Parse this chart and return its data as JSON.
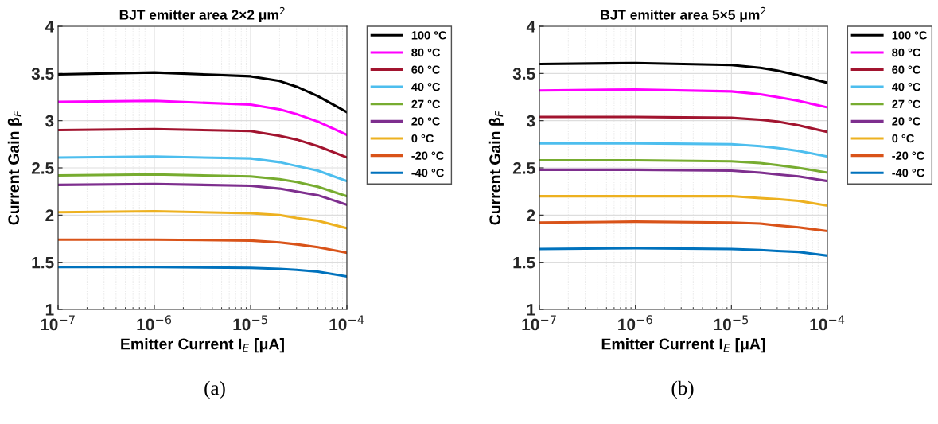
{
  "chart_data": [
    {
      "type": "line",
      "title": "BJT emitter area 2×2 μm$^{2}$",
      "xlabel": "Emitter Current I$_{E}$ [μA]",
      "ylabel": "Current Gain β$_{F}$",
      "log": "x",
      "grid": true,
      "legend": "right",
      "line_style": "solid",
      "marker": "none",
      "x": [
        1e-07,
        1e-06,
        1e-05,
        2e-05,
        3e-05,
        5e-05,
        0.0001
      ],
      "xlim": [
        1e-07,
        0.0001
      ],
      "xticks": [
        {
          "value": 1e-07,
          "label": "10$^{−7}$"
        },
        {
          "value": 1e-06,
          "label": "10$^{−6}$"
        },
        {
          "value": 1e-05,
          "label": "10$^{−5}$"
        },
        {
          "value": 0.0001,
          "label": "10$^{−4}$"
        }
      ],
      "ylim": [
        1,
        4
      ],
      "yticks": [
        1,
        1.5,
        2,
        2.5,
        3,
        3.5,
        4
      ],
      "series": [
        {
          "name": "100 °C",
          "color": "#000000",
          "values": [
            3.49,
            3.51,
            3.47,
            3.42,
            3.36,
            3.26,
            3.09
          ]
        },
        {
          "name": "80 °C",
          "color": "#ff00ff",
          "values": [
            3.2,
            3.21,
            3.17,
            3.12,
            3.07,
            2.99,
            2.85
          ]
        },
        {
          "name": "60 °C",
          "color": "#a2142f",
          "values": [
            2.9,
            2.91,
            2.89,
            2.84,
            2.8,
            2.73,
            2.61
          ]
        },
        {
          "name": "40 °C",
          "color": "#4dbeee",
          "values": [
            2.61,
            2.62,
            2.6,
            2.56,
            2.52,
            2.47,
            2.36
          ]
        },
        {
          "name": "27 °C",
          "color": "#77ac30",
          "values": [
            2.42,
            2.43,
            2.41,
            2.38,
            2.35,
            2.3,
            2.2
          ]
        },
        {
          "name": "20 °C",
          "color": "#7e2f8e",
          "values": [
            2.32,
            2.33,
            2.31,
            2.28,
            2.25,
            2.21,
            2.11
          ]
        },
        {
          "name": "0 °C",
          "color": "#edb120",
          "values": [
            2.03,
            2.04,
            2.02,
            2.0,
            1.97,
            1.94,
            1.86
          ]
        },
        {
          "name": "-20 °C",
          "color": "#d95319",
          "values": [
            1.74,
            1.74,
            1.73,
            1.71,
            1.69,
            1.66,
            1.6
          ]
        },
        {
          "name": "-40 °C",
          "color": "#0072bd",
          "values": [
            1.45,
            1.45,
            1.44,
            1.43,
            1.42,
            1.4,
            1.35
          ]
        }
      ],
      "annotations": [
        "(a)"
      ]
    },
    {
      "type": "line",
      "title": "BJT emitter area 5×5 μm$^{2}$",
      "xlabel": "Emitter Current I$_{E}$ [μA]",
      "ylabel": "Current Gain β$_{F}$",
      "log": "x",
      "grid": true,
      "legend": "right",
      "line_style": "solid",
      "marker": "none",
      "x": [
        1e-07,
        1e-06,
        1e-05,
        2e-05,
        3e-05,
        5e-05,
        0.0001
      ],
      "xlim": [
        1e-07,
        0.0001
      ],
      "xticks": [
        {
          "value": 1e-07,
          "label": "10$^{−7}$"
        },
        {
          "value": 1e-06,
          "label": "10$^{−6}$"
        },
        {
          "value": 1e-05,
          "label": "10$^{−5}$"
        },
        {
          "value": 0.0001,
          "label": "10$^{−4}$"
        }
      ],
      "ylim": [
        1,
        4
      ],
      "yticks": [
        1,
        1.5,
        2,
        2.5,
        3,
        3.5,
        4
      ],
      "series": [
        {
          "name": "100 °C",
          "color": "#000000",
          "values": [
            3.6,
            3.61,
            3.59,
            3.56,
            3.53,
            3.48,
            3.4
          ]
        },
        {
          "name": "80 °C",
          "color": "#ff00ff",
          "values": [
            3.32,
            3.33,
            3.31,
            3.28,
            3.25,
            3.21,
            3.14
          ]
        },
        {
          "name": "60 °C",
          "color": "#a2142f",
          "values": [
            3.04,
            3.04,
            3.03,
            3.01,
            2.99,
            2.95,
            2.88
          ]
        },
        {
          "name": "40 °C",
          "color": "#4dbeee",
          "values": [
            2.76,
            2.76,
            2.75,
            2.73,
            2.71,
            2.68,
            2.62
          ]
        },
        {
          "name": "27 °C",
          "color": "#77ac30",
          "values": [
            2.58,
            2.58,
            2.57,
            2.55,
            2.53,
            2.5,
            2.45
          ]
        },
        {
          "name": "20 °C",
          "color": "#7e2f8e",
          "values": [
            2.48,
            2.48,
            2.47,
            2.45,
            2.43,
            2.41,
            2.36
          ]
        },
        {
          "name": "0 °C",
          "color": "#edb120",
          "values": [
            2.2,
            2.2,
            2.2,
            2.18,
            2.17,
            2.15,
            2.1
          ]
        },
        {
          "name": "-20 °C",
          "color": "#d95319",
          "values": [
            1.92,
            1.93,
            1.92,
            1.91,
            1.89,
            1.87,
            1.83
          ]
        },
        {
          "name": "-40 °C",
          "color": "#0072bd",
          "values": [
            1.64,
            1.65,
            1.64,
            1.63,
            1.62,
            1.61,
            1.57
          ]
        }
      ],
      "annotations": [
        "(b)"
      ]
    }
  ]
}
